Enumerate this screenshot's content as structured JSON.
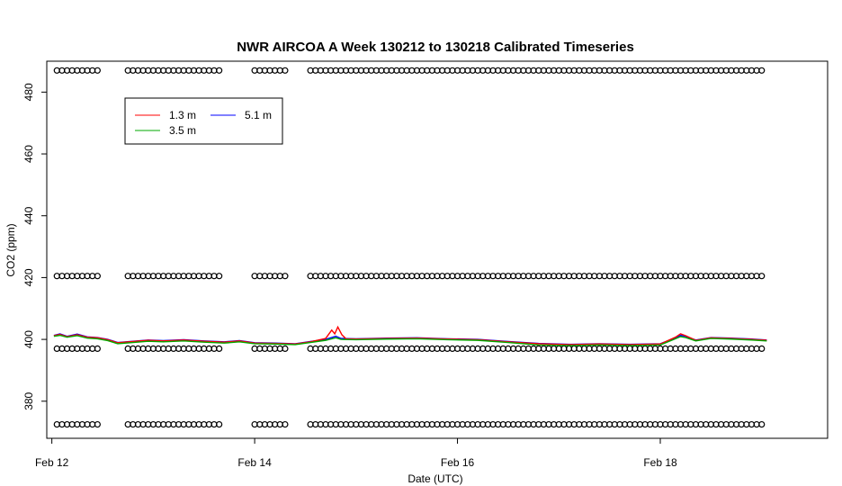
{
  "chart_data": {
    "type": "line",
    "title": "NWR AIRCOA A  Week 130212 to 130218  Calibrated Timeseries",
    "xlabel": "Date (UTC)",
    "ylabel": "CO2 (ppm)",
    "xlim": [
      11.95,
      19.65
    ],
    "ylim": [
      368,
      490
    ],
    "x_ticks": [
      {
        "value": 12,
        "label": "Feb 12"
      },
      {
        "value": 14,
        "label": "Feb 14"
      },
      {
        "value": 16,
        "label": "Feb 16"
      },
      {
        "value": 18,
        "label": "Feb 18"
      }
    ],
    "y_ticks": [
      {
        "value": 380,
        "label": "380"
      },
      {
        "value": 400,
        "label": "400"
      },
      {
        "value": 420,
        "label": "420"
      },
      {
        "value": 440,
        "label": "440"
      },
      {
        "value": 460,
        "label": "460"
      },
      {
        "value": 480,
        "label": "480"
      }
    ],
    "grid": false,
    "legend_position": "top-left",
    "legend": [
      {
        "name": "1.3 m",
        "color": "#ff0000"
      },
      {
        "name": "5.1 m",
        "color": "#0000ff"
      },
      {
        "name": "3.5 m",
        "color": "#00aa00"
      }
    ],
    "series": [
      {
        "name": "5.1 m",
        "color": "#0000ff",
        "points": [
          [
            12.02,
            401.3
          ],
          [
            12.08,
            401.8
          ],
          [
            12.15,
            401.0
          ],
          [
            12.25,
            401.7
          ],
          [
            12.35,
            400.8
          ],
          [
            12.45,
            400.6
          ],
          [
            12.55,
            400.0
          ],
          [
            12.65,
            399.0
          ],
          [
            12.8,
            399.4
          ],
          [
            12.95,
            399.8
          ],
          [
            13.1,
            399.6
          ],
          [
            13.3,
            399.9
          ],
          [
            13.5,
            399.5
          ],
          [
            13.7,
            399.2
          ],
          [
            13.85,
            399.6
          ],
          [
            14.0,
            398.9
          ],
          [
            14.2,
            398.8
          ],
          [
            14.4,
            398.6
          ],
          [
            14.55,
            399.3
          ],
          [
            14.7,
            400.0
          ],
          [
            14.8,
            401.0
          ],
          [
            14.85,
            400.3
          ],
          [
            15.0,
            400.2
          ],
          [
            15.3,
            400.4
          ],
          [
            15.6,
            400.5
          ],
          [
            15.9,
            400.2
          ],
          [
            16.2,
            400.0
          ],
          [
            16.5,
            399.3
          ],
          [
            16.8,
            398.7
          ],
          [
            17.1,
            398.4
          ],
          [
            17.4,
            398.6
          ],
          [
            17.7,
            398.4
          ],
          [
            18.0,
            398.6
          ],
          [
            18.15,
            400.5
          ],
          [
            18.2,
            401.3
          ],
          [
            18.25,
            401.0
          ],
          [
            18.35,
            399.8
          ],
          [
            18.5,
            400.6
          ],
          [
            18.7,
            400.4
          ],
          [
            18.9,
            400.1
          ],
          [
            19.05,
            399.8
          ]
        ]
      },
      {
        "name": "1.3 m",
        "color": "#ff0000",
        "points": [
          [
            12.02,
            401.2
          ],
          [
            12.08,
            401.6
          ],
          [
            12.15,
            400.9
          ],
          [
            12.25,
            401.5
          ],
          [
            12.35,
            400.7
          ],
          [
            12.45,
            400.5
          ],
          [
            12.55,
            399.9
          ],
          [
            12.65,
            398.9
          ],
          [
            12.8,
            399.3
          ],
          [
            12.95,
            399.7
          ],
          [
            13.1,
            399.5
          ],
          [
            13.3,
            399.8
          ],
          [
            13.5,
            399.4
          ],
          [
            13.7,
            399.1
          ],
          [
            13.85,
            399.5
          ],
          [
            14.0,
            398.8
          ],
          [
            14.2,
            398.7
          ],
          [
            14.4,
            398.5
          ],
          [
            14.55,
            399.2
          ],
          [
            14.7,
            400.3
          ],
          [
            14.76,
            403.0
          ],
          [
            14.79,
            401.8
          ],
          [
            14.82,
            404.0
          ],
          [
            14.86,
            401.5
          ],
          [
            14.9,
            400.2
          ],
          [
            15.0,
            400.1
          ],
          [
            15.3,
            400.3
          ],
          [
            15.6,
            400.4
          ],
          [
            15.9,
            400.1
          ],
          [
            16.2,
            399.9
          ],
          [
            16.5,
            399.2
          ],
          [
            16.8,
            398.6
          ],
          [
            17.1,
            398.3
          ],
          [
            17.4,
            398.5
          ],
          [
            17.7,
            398.3
          ],
          [
            18.0,
            398.5
          ],
          [
            18.15,
            400.7
          ],
          [
            18.2,
            401.8
          ],
          [
            18.25,
            401.2
          ],
          [
            18.35,
            399.7
          ],
          [
            18.5,
            400.5
          ],
          [
            18.7,
            400.3
          ],
          [
            18.9,
            400.0
          ],
          [
            19.05,
            399.7
          ]
        ]
      },
      {
        "name": "3.5 m",
        "color": "#00aa00",
        "points": [
          [
            12.02,
            401.0
          ],
          [
            12.08,
            401.3
          ],
          [
            12.15,
            400.7
          ],
          [
            12.25,
            401.2
          ],
          [
            12.35,
            400.4
          ],
          [
            12.45,
            400.2
          ],
          [
            12.55,
            399.6
          ],
          [
            12.65,
            398.6
          ],
          [
            12.8,
            399.0
          ],
          [
            12.95,
            399.4
          ],
          [
            13.1,
            399.2
          ],
          [
            13.3,
            399.5
          ],
          [
            13.5,
            399.1
          ],
          [
            13.7,
            398.8
          ],
          [
            13.85,
            399.2
          ],
          [
            14.0,
            398.6
          ],
          [
            14.2,
            398.5
          ],
          [
            14.4,
            398.3
          ],
          [
            14.55,
            399.0
          ],
          [
            14.7,
            399.7
          ],
          [
            14.8,
            400.5
          ],
          [
            14.85,
            400.0
          ],
          [
            15.0,
            399.9
          ],
          [
            15.3,
            400.1
          ],
          [
            15.6,
            400.2
          ],
          [
            15.9,
            399.9
          ],
          [
            16.2,
            399.7
          ],
          [
            16.5,
            399.0
          ],
          [
            16.8,
            398.2
          ],
          [
            17.1,
            398.0
          ],
          [
            17.4,
            398.2
          ],
          [
            17.7,
            398.0
          ],
          [
            18.0,
            398.2
          ],
          [
            18.15,
            400.2
          ],
          [
            18.2,
            400.9
          ],
          [
            18.25,
            400.6
          ],
          [
            18.35,
            399.5
          ],
          [
            18.5,
            400.3
          ],
          [
            18.7,
            400.1
          ],
          [
            18.9,
            399.8
          ],
          [
            19.05,
            399.5
          ]
        ]
      }
    ],
    "reference_points": {
      "marker": "open-circle",
      "levels": [
        487,
        420.5,
        397,
        372.5
      ],
      "gaps": [
        [
          12.5,
          12.72
        ],
        [
          13.7,
          14.0
        ],
        [
          14.35,
          14.55
        ]
      ],
      "x_start": 12.05,
      "x_end": 19.0,
      "x_step": 0.05
    }
  }
}
